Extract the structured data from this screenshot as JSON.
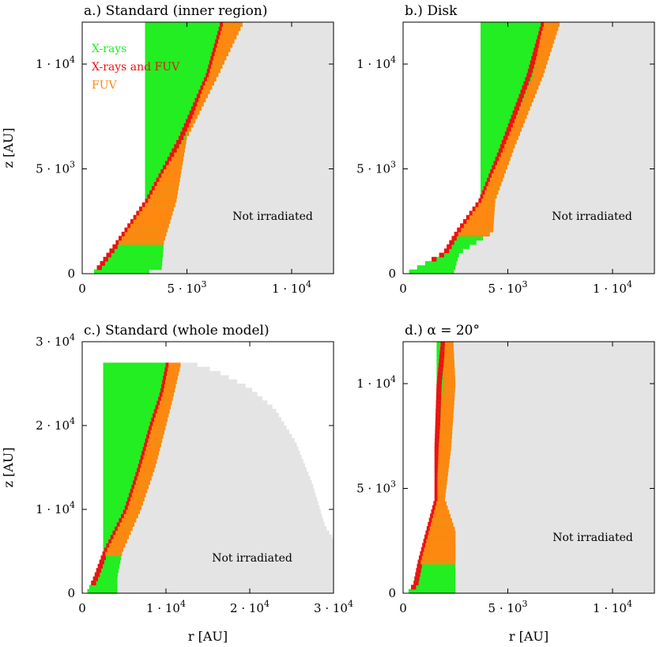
{
  "chart_data": [
    {
      "type": "area",
      "title": "a.) Standard (inner region)",
      "xlabel": "",
      "ylabel": "z [AU]",
      "xlim": [
        0,
        12000
      ],
      "ylim": [
        0,
        12000
      ],
      "x_ticks": [
        {
          "value": 0,
          "label": "0"
        },
        {
          "value": 5000,
          "label": "5·10^3"
        },
        {
          "value": 10000,
          "label": "1·10^4"
        }
      ],
      "y_ticks": [
        {
          "value": 0,
          "label": "0"
        },
        {
          "value": 5000,
          "label": "5·10^3"
        },
        {
          "value": 10000,
          "label": "1·10^4"
        }
      ],
      "legend": [
        "X-rays",
        "X-rays and FUV",
        "FUV"
      ],
      "annotation": "Not irradiated",
      "zones": {
        "z": [
          0,
          300,
          1500,
          3500,
          6500,
          9500,
          12000
        ],
        "green_inner": [
          500,
          700,
          1600,
          3000,
          3000,
          3000,
          3000
        ],
        "red_inner": [
          500,
          700,
          1600,
          3000,
          4600,
          5900,
          6600
        ],
        "orange_inner": [
          500,
          700,
          1600,
          3000,
          4900,
          6000,
          6700
        ],
        "grey_start": [
          2900,
          3800,
          3900,
          4500,
          5000,
          6500,
          7700
        ]
      }
    },
    {
      "type": "area",
      "title": "b.) Disk",
      "xlabel": "",
      "ylabel": "",
      "xlim": [
        0,
        12000
      ],
      "ylim": [
        0,
        12000
      ],
      "x_ticks": [
        {
          "value": 0,
          "label": "0"
        },
        {
          "value": 5000,
          "label": "5·10^3"
        },
        {
          "value": 10000,
          "label": "1·10^4"
        }
      ],
      "y_ticks": [
        {
          "value": 0,
          "label": "0"
        },
        {
          "value": 5000,
          "label": "5·10^3"
        },
        {
          "value": 10000,
          "label": "1·10^4"
        }
      ],
      "annotation": "Not irradiated",
      "zones": {
        "z": [
          0,
          1000,
          2000,
          3500,
          6000,
          9500,
          12000
        ],
        "green_inner": [
          100,
          2000,
          2600,
          3700,
          3700,
          3700,
          3700
        ],
        "red_inner": [
          100,
          1900,
          2500,
          3600,
          4600,
          5900,
          6600
        ],
        "orange_inner": [
          100,
          2000,
          2700,
          3700,
          4800,
          6200,
          6700
        ],
        "grey_start": [
          2400,
          2700,
          4300,
          4400,
          5300,
          6700,
          7500
        ]
      }
    },
    {
      "type": "area",
      "title": "c.) Standard (whole model)",
      "xlabel": "r [AU]",
      "ylabel": "z [AU]",
      "xlim": [
        0,
        30000
      ],
      "ylim": [
        0,
        30000
      ],
      "x_ticks": [
        {
          "value": 0,
          "label": "0"
        },
        {
          "value": 10000,
          "label": "1·10^4"
        },
        {
          "value": 20000,
          "label": "2·10^4"
        },
        {
          "value": 30000,
          "label": "3·10^4"
        }
      ],
      "y_ticks": [
        {
          "value": 0,
          "label": "0"
        },
        {
          "value": 10000,
          "label": "1·10^4"
        },
        {
          "value": 20000,
          "label": "2·10^4"
        },
        {
          "value": 30000,
          "label": "3·10^4"
        }
      ],
      "annotation": "Not irradiated",
      "model_top_z": 27500,
      "outer_boundary_r": [
        11500,
        13000,
        16000,
        20000,
        23000,
        25500,
        27500,
        29000,
        30000
      ],
      "outer_boundary_z": [
        27500,
        27500,
        26500,
        24500,
        22000,
        18000,
        13000,
        8000,
        6500
      ],
      "zones": {
        "z": [
          0,
          2000,
          5000,
          10000,
          15000,
          20000,
          24000,
          27500
        ],
        "green_inner": [
          500,
          1400,
          2500,
          2500,
          2500,
          2500,
          2500,
          2500
        ],
        "red_inner": [
          500,
          1400,
          2500,
          5000,
          6600,
          8000,
          9300,
          10000
        ],
        "orange_inner": [
          500,
          1400,
          2500,
          5300,
          6700,
          8100,
          9500,
          10000
        ],
        "grey_start": [
          4200,
          4200,
          4800,
          7000,
          8700,
          10000,
          11000,
          11800
        ]
      }
    },
    {
      "type": "area",
      "title": "d.) α = 20°",
      "xlabel": "r [AU]",
      "ylabel": "",
      "xlim": [
        0,
        12000
      ],
      "ylim": [
        0,
        12000
      ],
      "x_ticks": [
        {
          "value": 0,
          "label": "0"
        },
        {
          "value": 5000,
          "label": "5·10^3"
        },
        {
          "value": 10000,
          "label": "1·10^4"
        }
      ],
      "y_ticks": [
        {
          "value": 0,
          "label": "0"
        },
        {
          "value": 5000,
          "label": "5·10^3"
        },
        {
          "value": 10000,
          "label": "1·10^4"
        }
      ],
      "annotation": "Not irradiated",
      "zones": {
        "z": [
          0,
          500,
          1500,
          3000,
          4500,
          7000,
          10000,
          12000
        ],
        "green_inner": [
          200,
          500,
          700,
          1200,
          1600,
          1600,
          1600,
          1600
        ],
        "red_inner": [
          200,
          500,
          700,
          1100,
          1500,
          1500,
          1600,
          1800
        ],
        "orange_inner": [
          200,
          500,
          700,
          1200,
          1600,
          1700,
          1900,
          2000
        ],
        "grey_start": [
          2500,
          2500,
          2500,
          2500,
          2000,
          2300,
          2500,
          2400
        ]
      }
    }
  ],
  "colors": {
    "green": "#22ee22",
    "red": "#ee1111",
    "orange": "#ff8811",
    "grey": "#e4e4e4",
    "legend_green": "#22ee22",
    "legend_red": "#ee1111",
    "legend_orange": "#ff8811"
  }
}
